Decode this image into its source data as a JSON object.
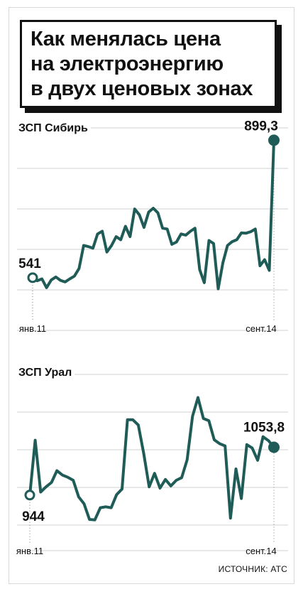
{
  "title": "Как менялась цена\nна электроэнергию\nв двух ценовых зонах",
  "source": "ИСТОЧНИК: АТС",
  "colors": {
    "line": "#1f5c57",
    "grid": "#d0d0d0",
    "text": "#111111",
    "title_border": "#111111"
  },
  "chart_data": [
    {
      "type": "line",
      "title": "ЗСП Сибирь",
      "x_start": "янв.11",
      "x_end": "сент.14",
      "start_label": "541",
      "end_label": "899,3",
      "ylim": [
        450,
        950
      ],
      "grid": true,
      "series": [
        {
          "values": [
            541,
            533,
            538,
            515,
            535,
            543,
            534,
            530,
            538,
            545,
            565,
            625,
            622,
            618,
            655,
            662,
            608,
            625,
            648,
            640,
            675,
            648,
            720,
            705,
            672,
            712,
            722,
            710,
            670,
            668,
            628,
            634,
            655,
            652,
            662,
            670,
            562,
            528,
            638,
            630,
            512,
            580,
            625,
            635,
            640,
            658,
            657,
            661,
            668,
            572,
            588,
            560,
            899.3
          ]
        }
      ]
    },
    {
      "type": "line",
      "title": "ЗСП Урал",
      "x_start": "янв.11",
      "x_end": "сент.14",
      "start_label": "944",
      "end_label": "1053,8",
      "ylim": [
        800,
        1200
      ],
      "grid": true,
      "series": [
        {
          "values": [
            944,
            1070,
            951,
            963,
            973,
            1000,
            990,
            985,
            978,
            940,
            924,
            888,
            887,
            915,
            917,
            915,
            945,
            958,
            1117,
            1117,
            1105,
            1040,
            963,
            994,
            960,
            980,
            965,
            978,
            984,
            1025,
            1125,
            1168,
            1120,
            1115,
            1071,
            1062,
            1057,
            891,
            1004,
            936,
            1060,
            1052,
            1024,
            1078,
            1069,
            1053.8
          ]
        }
      ]
    }
  ]
}
